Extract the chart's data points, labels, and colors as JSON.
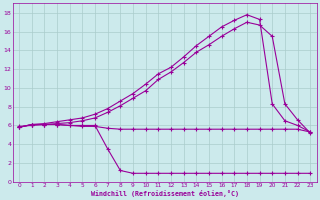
{
  "xlabel": "Windchill (Refroidissement éolien,°C)",
  "bg_color": "#cceaec",
  "line_color": "#990099",
  "grid_color": "#aacccc",
  "xlim": [
    -0.5,
    23.5
  ],
  "ylim": [
    0,
    19
  ],
  "xticks": [
    0,
    1,
    2,
    3,
    4,
    5,
    6,
    7,
    8,
    9,
    10,
    11,
    12,
    13,
    14,
    15,
    16,
    17,
    18,
    19,
    20,
    21,
    22,
    23
  ],
  "yticks": [
    0,
    2,
    4,
    6,
    8,
    10,
    12,
    14,
    16,
    18
  ],
  "series1_x": [
    0,
    1,
    2,
    3,
    4,
    5,
    6,
    7,
    8,
    9,
    10,
    11,
    12,
    13,
    14,
    15,
    16,
    17,
    18,
    19,
    20,
    21,
    22,
    23
  ],
  "series1_y": [
    5.8,
    6.1,
    6.1,
    6.1,
    6.0,
    5.9,
    5.9,
    5.7,
    5.6,
    5.6,
    5.6,
    5.6,
    5.6,
    5.6,
    5.6,
    5.6,
    5.6,
    5.6,
    5.6,
    5.6,
    5.6,
    5.6,
    5.6,
    5.3
  ],
  "series2_x": [
    0,
    1,
    2,
    3,
    4,
    5,
    6,
    7,
    8,
    9,
    10,
    11,
    12,
    13,
    14,
    15,
    16,
    17,
    18,
    19,
    20,
    21,
    22,
    23
  ],
  "series2_y": [
    5.8,
    6.1,
    6.1,
    6.1,
    6.0,
    6.0,
    6.0,
    3.5,
    1.2,
    0.9,
    0.9,
    0.9,
    0.9,
    0.9,
    0.9,
    0.9,
    0.9,
    0.9,
    0.9,
    0.9,
    0.9,
    0.9,
    0.9,
    0.9
  ],
  "series3_x": [
    0,
    1,
    2,
    3,
    4,
    5,
    6,
    7,
    8,
    9,
    10,
    11,
    12,
    13,
    14,
    15,
    16,
    17,
    18,
    19,
    20,
    21,
    22,
    23
  ],
  "series3_y": [
    5.8,
    6.1,
    6.2,
    6.4,
    6.6,
    6.8,
    7.2,
    7.8,
    8.6,
    9.4,
    10.4,
    11.5,
    12.2,
    13.3,
    14.5,
    15.5,
    16.5,
    17.2,
    17.8,
    17.3,
    8.3,
    6.5,
    6.0,
    5.3
  ],
  "series4_x": [
    0,
    1,
    2,
    3,
    4,
    5,
    6,
    7,
    8,
    9,
    10,
    11,
    12,
    13,
    14,
    15,
    16,
    17,
    18,
    19,
    20,
    21,
    22,
    23
  ],
  "series4_y": [
    5.9,
    6.0,
    6.1,
    6.2,
    6.3,
    6.5,
    6.8,
    7.4,
    8.1,
    8.9,
    9.7,
    10.9,
    11.7,
    12.7,
    13.8,
    14.6,
    15.5,
    16.3,
    17.0,
    16.7,
    15.5,
    8.3,
    6.6,
    5.2
  ]
}
